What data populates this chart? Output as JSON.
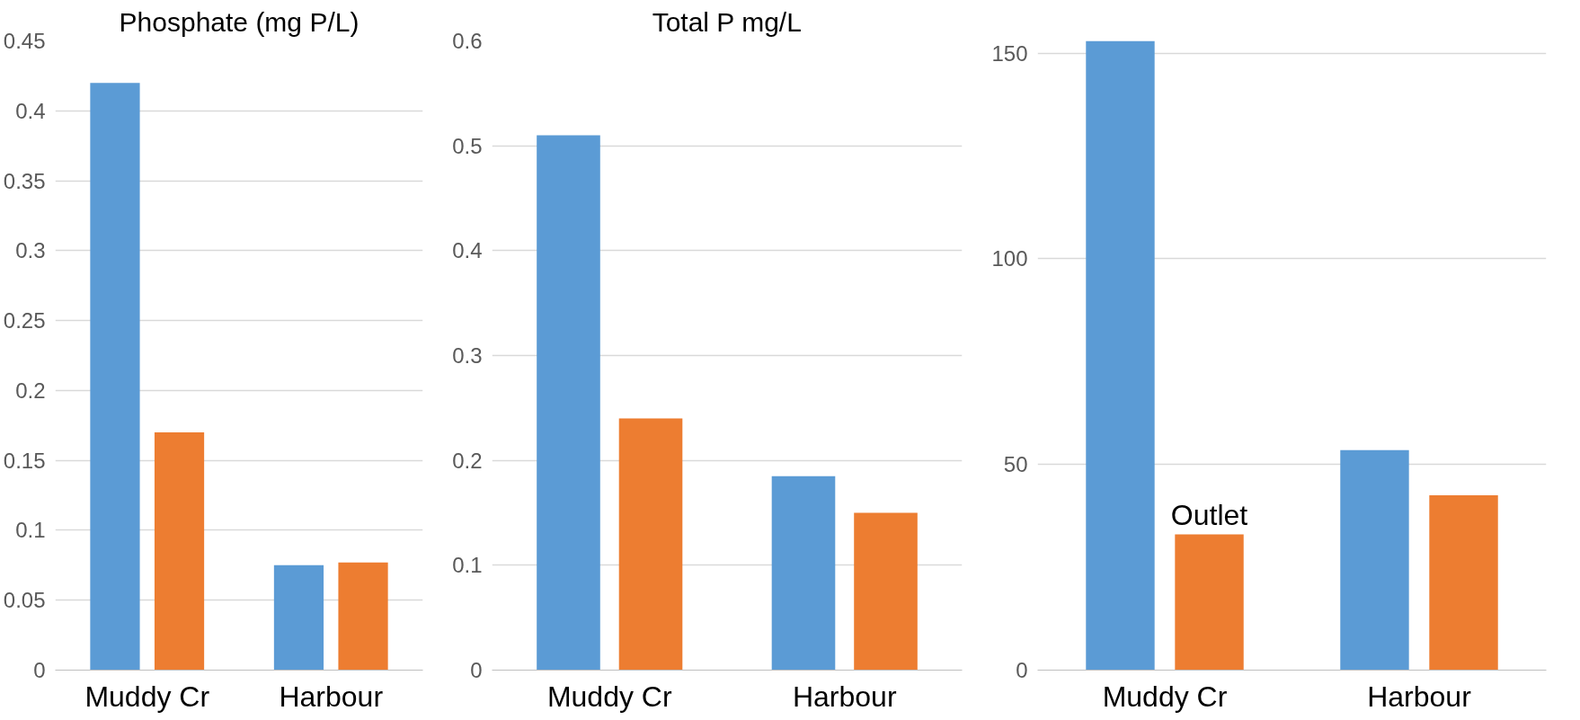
{
  "chart_data": [
    {
      "type": "bar",
      "title": "Phosphate (mg P/L)",
      "categories": [
        "Muddy Cr",
        "Harbour"
      ],
      "series": [
        {
          "color": "#5b9bd5",
          "values": [
            0.42,
            0.075
          ]
        },
        {
          "color": "#ed7d31",
          "values": [
            0.17,
            0.077
          ]
        }
      ],
      "ylim": [
        0,
        0.45
      ],
      "yticks": [
        0,
        0.05,
        0.1,
        0.15,
        0.2,
        0.25,
        0.3,
        0.35,
        0.4,
        0.45
      ],
      "grid": "y"
    },
    {
      "type": "bar",
      "title": "Total P mg/L",
      "categories": [
        "Muddy Cr",
        "Harbour"
      ],
      "series": [
        {
          "color": "#5b9bd5",
          "values": [
            0.51,
            0.185
          ]
        },
        {
          "color": "#ed7d31",
          "values": [
            0.24,
            0.15
          ]
        }
      ],
      "ylim": [
        0,
        0.6
      ],
      "yticks": [
        0,
        0.1,
        0.2,
        0.3,
        0.4,
        0.5,
        0.6
      ],
      "grid": "y"
    },
    {
      "type": "bar",
      "categories": [
        "Muddy Cr",
        "Harbour"
      ],
      "series": [
        {
          "color": "#5b9bd5",
          "values": [
            153,
            53.5
          ]
        },
        {
          "name": "Outlet",
          "color": "#ed7d31",
          "values": [
            33,
            42.5
          ]
        }
      ],
      "ylim": [
        0,
        153
      ],
      "yticks": [
        0,
        50,
        100,
        150
      ],
      "grid": "y"
    }
  ]
}
